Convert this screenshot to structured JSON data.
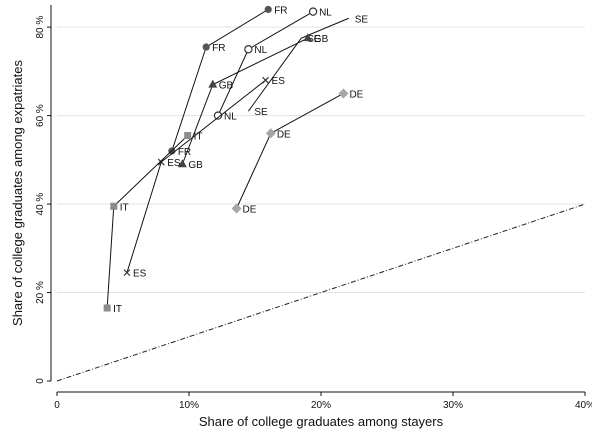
{
  "chart_data": {
    "type": "scatter",
    "xlabel": "Share of college graduates among stayers",
    "ylabel": "Share of college graduates among expatriates",
    "xlim": [
      0,
      40
    ],
    "ylim": [
      0,
      85
    ],
    "x_ticks": [
      0,
      10,
      20,
      30,
      40
    ],
    "x_tick_labels": [
      "0",
      "10%",
      "20%",
      "30%",
      "40%"
    ],
    "y_ticks": [
      0,
      20,
      40,
      60,
      80
    ],
    "y_tick_labels": [
      "0",
      "20 %",
      "40 %",
      "60 %",
      "80 %"
    ],
    "grid": "horizontal",
    "reference_line": "45-degree line (x = y), dash-dot",
    "series": [
      {
        "label": "FR",
        "marker": "circle-filled",
        "color": "#555555",
        "points": [
          {
            "x": 8.7,
            "y": 52
          },
          {
            "x": 11.3,
            "y": 75.5
          },
          {
            "x": 16.0,
            "y": 84
          }
        ]
      },
      {
        "label": "NL",
        "marker": "circle-open",
        "color": "#333333",
        "points": [
          {
            "x": 12.2,
            "y": 60
          },
          {
            "x": 14.5,
            "y": 75
          },
          {
            "x": 19.4,
            "y": 83.5
          }
        ]
      },
      {
        "label": "SE",
        "marker": "none",
        "color": "#333333",
        "points": [
          {
            "x": 14.5,
            "y": 61
          },
          {
            "x": 18.5,
            "y": 77.5
          },
          {
            "x": 22.1,
            "y": 82
          }
        ]
      },
      {
        "label": "GB",
        "marker": "triangle",
        "color": "#444444",
        "points": [
          {
            "x": 9.5,
            "y": 49
          },
          {
            "x": 11.8,
            "y": 67
          },
          {
            "x": 19.0,
            "y": 77.5
          }
        ]
      },
      {
        "label": "ES",
        "marker": "x",
        "color": "#333333",
        "points": [
          {
            "x": 5.3,
            "y": 24.5
          },
          {
            "x": 7.9,
            "y": 49.5
          },
          {
            "x": 15.8,
            "y": 68
          }
        ]
      },
      {
        "label": "IT",
        "marker": "square",
        "color": "#8c8c8c",
        "points": [
          {
            "x": 3.8,
            "y": 16.5
          },
          {
            "x": 4.3,
            "y": 39.5
          },
          {
            "x": 9.9,
            "y": 55.5
          }
        ]
      },
      {
        "label": "DE",
        "marker": "diamond",
        "color": "#a6a6a6",
        "points": [
          {
            "x": 13.6,
            "y": 39
          },
          {
            "x": 16.2,
            "y": 56
          },
          {
            "x": 21.7,
            "y": 65
          }
        ]
      }
    ]
  }
}
